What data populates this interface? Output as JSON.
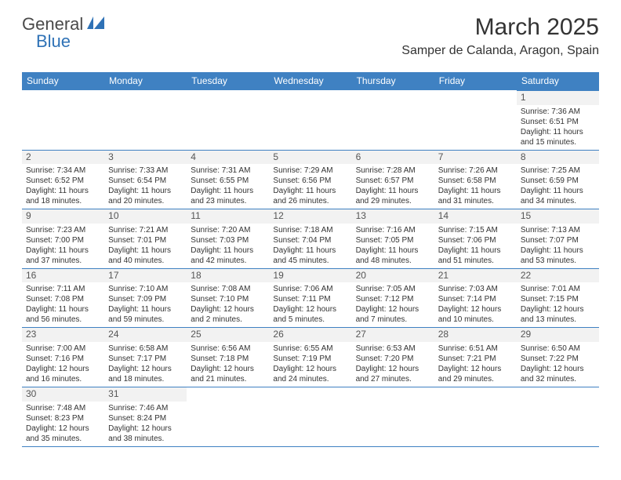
{
  "logo": {
    "text1": "General",
    "text2": "Blue"
  },
  "title": "March 2025",
  "location": "Samper de Calanda, Aragon, Spain",
  "colors": {
    "header_bg": "#3f81c2",
    "header_text": "#ffffff",
    "border": "#3f81c2",
    "shaded_bg": "#f2f2f2",
    "body_text": "#333333",
    "logo_gray": "#4a4a4a",
    "logo_blue": "#2f72b6"
  },
  "daysOfWeek": [
    "Sunday",
    "Monday",
    "Tuesday",
    "Wednesday",
    "Thursday",
    "Friday",
    "Saturday"
  ],
  "days": [
    {
      "n": 1,
      "sr": "7:36 AM",
      "ss": "6:51 PM",
      "dl": "11 hours and 15 minutes."
    },
    {
      "n": 2,
      "sr": "7:34 AM",
      "ss": "6:52 PM",
      "dl": "11 hours and 18 minutes."
    },
    {
      "n": 3,
      "sr": "7:33 AM",
      "ss": "6:54 PM",
      "dl": "11 hours and 20 minutes."
    },
    {
      "n": 4,
      "sr": "7:31 AM",
      "ss": "6:55 PM",
      "dl": "11 hours and 23 minutes."
    },
    {
      "n": 5,
      "sr": "7:29 AM",
      "ss": "6:56 PM",
      "dl": "11 hours and 26 minutes."
    },
    {
      "n": 6,
      "sr": "7:28 AM",
      "ss": "6:57 PM",
      "dl": "11 hours and 29 minutes."
    },
    {
      "n": 7,
      "sr": "7:26 AM",
      "ss": "6:58 PM",
      "dl": "11 hours and 31 minutes."
    },
    {
      "n": 8,
      "sr": "7:25 AM",
      "ss": "6:59 PM",
      "dl": "11 hours and 34 minutes."
    },
    {
      "n": 9,
      "sr": "7:23 AM",
      "ss": "7:00 PM",
      "dl": "11 hours and 37 minutes."
    },
    {
      "n": 10,
      "sr": "7:21 AM",
      "ss": "7:01 PM",
      "dl": "11 hours and 40 minutes."
    },
    {
      "n": 11,
      "sr": "7:20 AM",
      "ss": "7:03 PM",
      "dl": "11 hours and 42 minutes."
    },
    {
      "n": 12,
      "sr": "7:18 AM",
      "ss": "7:04 PM",
      "dl": "11 hours and 45 minutes."
    },
    {
      "n": 13,
      "sr": "7:16 AM",
      "ss": "7:05 PM",
      "dl": "11 hours and 48 minutes."
    },
    {
      "n": 14,
      "sr": "7:15 AM",
      "ss": "7:06 PM",
      "dl": "11 hours and 51 minutes."
    },
    {
      "n": 15,
      "sr": "7:13 AM",
      "ss": "7:07 PM",
      "dl": "11 hours and 53 minutes."
    },
    {
      "n": 16,
      "sr": "7:11 AM",
      "ss": "7:08 PM",
      "dl": "11 hours and 56 minutes."
    },
    {
      "n": 17,
      "sr": "7:10 AM",
      "ss": "7:09 PM",
      "dl": "11 hours and 59 minutes."
    },
    {
      "n": 18,
      "sr": "7:08 AM",
      "ss": "7:10 PM",
      "dl": "12 hours and 2 minutes."
    },
    {
      "n": 19,
      "sr": "7:06 AM",
      "ss": "7:11 PM",
      "dl": "12 hours and 5 minutes."
    },
    {
      "n": 20,
      "sr": "7:05 AM",
      "ss": "7:12 PM",
      "dl": "12 hours and 7 minutes."
    },
    {
      "n": 21,
      "sr": "7:03 AM",
      "ss": "7:14 PM",
      "dl": "12 hours and 10 minutes."
    },
    {
      "n": 22,
      "sr": "7:01 AM",
      "ss": "7:15 PM",
      "dl": "12 hours and 13 minutes."
    },
    {
      "n": 23,
      "sr": "7:00 AM",
      "ss": "7:16 PM",
      "dl": "12 hours and 16 minutes."
    },
    {
      "n": 24,
      "sr": "6:58 AM",
      "ss": "7:17 PM",
      "dl": "12 hours and 18 minutes."
    },
    {
      "n": 25,
      "sr": "6:56 AM",
      "ss": "7:18 PM",
      "dl": "12 hours and 21 minutes."
    },
    {
      "n": 26,
      "sr": "6:55 AM",
      "ss": "7:19 PM",
      "dl": "12 hours and 24 minutes."
    },
    {
      "n": 27,
      "sr": "6:53 AM",
      "ss": "7:20 PM",
      "dl": "12 hours and 27 minutes."
    },
    {
      "n": 28,
      "sr": "6:51 AM",
      "ss": "7:21 PM",
      "dl": "12 hours and 29 minutes."
    },
    {
      "n": 29,
      "sr": "6:50 AM",
      "ss": "7:22 PM",
      "dl": "12 hours and 32 minutes."
    },
    {
      "n": 30,
      "sr": "7:48 AM",
      "ss": "8:23 PM",
      "dl": "12 hours and 35 minutes."
    },
    {
      "n": 31,
      "sr": "7:46 AM",
      "ss": "8:24 PM",
      "dl": "12 hours and 38 minutes."
    }
  ],
  "firstDayOffset": 6,
  "labels": {
    "sunrise": "Sunrise:",
    "sunset": "Sunset:",
    "daylight": "Daylight:"
  }
}
